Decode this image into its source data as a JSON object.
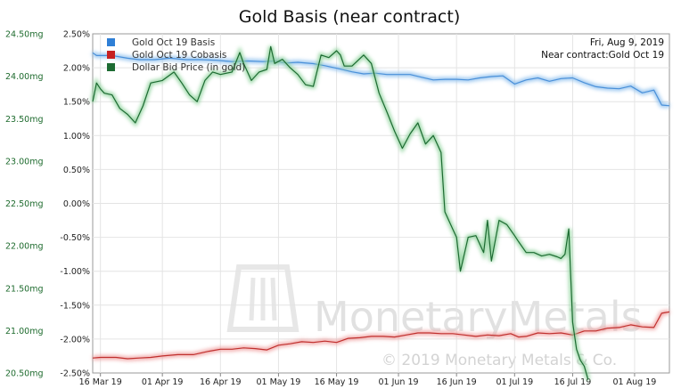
{
  "chart_data": {
    "type": "line",
    "title": "Gold Basis (near contract)",
    "info": {
      "date": "Fri, Aug 9, 2019",
      "contract": "Near contract:Gold Oct 19"
    },
    "watermark": {
      "brand": "MonetaryMetals",
      "copyright": "© 2019 Monetary Metals & Co."
    },
    "x_ticks": [
      "16 Mar 19",
      "01 Apr 19",
      "16 Apr 19",
      "01 May 19",
      "16 May 19",
      "01 Jun 19",
      "16 Jun 19",
      "01 Jul 19",
      "16 Jul 19",
      "01 Aug 19"
    ],
    "x_tick_days": [
      0,
      16,
      31,
      46,
      61,
      77,
      92,
      107,
      122,
      138
    ],
    "x_range": [
      -2,
      147
    ],
    "right_axis": {
      "ticks": [
        "2.50%",
        "2.00%",
        "1.50%",
        "1.00%",
        "0.50%",
        "0.00%",
        "-0.50%",
        "-1.00%",
        "-1.50%",
        "-2.00%",
        "-2.50%"
      ],
      "range": [
        -2.5,
        2.5
      ]
    },
    "left_axis": {
      "ticks": [
        "24.50mg",
        "24.00mg",
        "23.50mg",
        "23.00mg",
        "22.50mg",
        "22.00mg",
        "21.50mg",
        "21.00mg",
        "20.50mg"
      ],
      "range": [
        20.5,
        24.5
      ]
    },
    "legend_placement": "top-left",
    "series": [
      {
        "name": "Gold Oct 19 Basis",
        "color": "#4a90d9",
        "axis": "right",
        "points": [
          [
            -2,
            2.22
          ],
          [
            -1,
            2.18
          ],
          [
            3,
            2.18
          ],
          [
            7,
            2.14
          ],
          [
            10,
            2.12
          ],
          [
            14,
            2.12
          ],
          [
            18,
            2.14
          ],
          [
            22,
            2.12
          ],
          [
            26,
            2.12
          ],
          [
            30,
            2.11
          ],
          [
            34,
            2.09
          ],
          [
            38,
            2.1
          ],
          [
            42,
            2.09
          ],
          [
            45,
            2.1
          ],
          [
            48,
            2.07
          ],
          [
            51,
            2.08
          ],
          [
            55,
            2.06
          ],
          [
            58,
            2.03
          ],
          [
            62,
            1.98
          ],
          [
            65,
            1.94
          ],
          [
            68,
            1.91
          ],
          [
            71,
            1.92
          ],
          [
            74,
            1.9
          ],
          [
            77,
            1.9
          ],
          [
            80,
            1.9
          ],
          [
            83,
            1.86
          ],
          [
            86,
            1.82
          ],
          [
            89,
            1.83
          ],
          [
            92,
            1.83
          ],
          [
            95,
            1.82
          ],
          [
            98,
            1.85
          ],
          [
            101,
            1.87
          ],
          [
            104,
            1.88
          ],
          [
            107,
            1.76
          ],
          [
            110,
            1.82
          ],
          [
            113,
            1.85
          ],
          [
            116,
            1.8
          ],
          [
            119,
            1.84
          ],
          [
            122,
            1.85
          ],
          [
            125,
            1.78
          ],
          [
            128,
            1.72
          ],
          [
            131,
            1.7
          ],
          [
            134,
            1.69
          ],
          [
            137,
            1.73
          ],
          [
            140,
            1.63
          ],
          [
            143,
            1.67
          ],
          [
            145,
            1.45
          ],
          [
            147,
            1.44
          ]
        ]
      },
      {
        "name": "Gold Oct 19 Cobasis",
        "color": "#c0302e",
        "axis": "right",
        "points": [
          [
            -2,
            -2.28
          ],
          [
            0,
            -2.27
          ],
          [
            4,
            -2.27
          ],
          [
            7,
            -2.29
          ],
          [
            10,
            -2.28
          ],
          [
            13,
            -2.27
          ],
          [
            16,
            -2.25
          ],
          [
            20,
            -2.23
          ],
          [
            24,
            -2.23
          ],
          [
            28,
            -2.18
          ],
          [
            31,
            -2.15
          ],
          [
            34,
            -2.15
          ],
          [
            37,
            -2.13
          ],
          [
            40,
            -2.14
          ],
          [
            43,
            -2.16
          ],
          [
            46,
            -2.09
          ],
          [
            49,
            -2.07
          ],
          [
            52,
            -2.04
          ],
          [
            55,
            -2.05
          ],
          [
            58,
            -2.03
          ],
          [
            61,
            -2.05
          ],
          [
            64,
            -1.99
          ],
          [
            67,
            -1.98
          ],
          [
            70,
            -1.96
          ],
          [
            73,
            -1.96
          ],
          [
            76,
            -1.97
          ],
          [
            79,
            -1.94
          ],
          [
            82,
            -1.91
          ],
          [
            85,
            -1.91
          ],
          [
            88,
            -1.92
          ],
          [
            91,
            -1.92
          ],
          [
            94,
            -1.94
          ],
          [
            97,
            -1.96
          ],
          [
            100,
            -1.94
          ],
          [
            103,
            -1.95
          ],
          [
            106,
            -1.92
          ],
          [
            108,
            -1.97
          ],
          [
            110,
            -1.96
          ],
          [
            113,
            -1.91
          ],
          [
            116,
            -1.92
          ],
          [
            119,
            -1.91
          ],
          [
            122,
            -1.94
          ],
          [
            125,
            -1.88
          ],
          [
            128,
            -1.88
          ],
          [
            131,
            -1.84
          ],
          [
            134,
            -1.83
          ],
          [
            137,
            -1.79
          ],
          [
            140,
            -1.82
          ],
          [
            143,
            -1.83
          ],
          [
            145,
            -1.62
          ],
          [
            147,
            -1.6
          ]
        ]
      },
      {
        "name": "Dollar Bid Price (in gold)",
        "color": "#1d6b32",
        "axis": "left",
        "points": [
          [
            -2,
            23.7
          ],
          [
            -1,
            23.92
          ],
          [
            0,
            23.85
          ],
          [
            1,
            23.8
          ],
          [
            3,
            23.78
          ],
          [
            5,
            23.62
          ],
          [
            7,
            23.55
          ],
          [
            9,
            23.45
          ],
          [
            11,
            23.65
          ],
          [
            13,
            23.92
          ],
          [
            16,
            23.95
          ],
          [
            19,
            24.05
          ],
          [
            21,
            23.92
          ],
          [
            23,
            23.78
          ],
          [
            25,
            23.7
          ],
          [
            27,
            23.95
          ],
          [
            29,
            24.05
          ],
          [
            31,
            24.02
          ],
          [
            34,
            24.05
          ],
          [
            36,
            24.28
          ],
          [
            37,
            24.15
          ],
          [
            39,
            23.95
          ],
          [
            41,
            24.05
          ],
          [
            43,
            24.08
          ],
          [
            44,
            24.35
          ],
          [
            45,
            24.15
          ],
          [
            47,
            24.2
          ],
          [
            49,
            24.1
          ],
          [
            51,
            24.02
          ],
          [
            53,
            23.9
          ],
          [
            55,
            23.88
          ],
          [
            57,
            24.25
          ],
          [
            59,
            24.22
          ],
          [
            61,
            24.3
          ],
          [
            62,
            24.25
          ],
          [
            63,
            24.12
          ],
          [
            65,
            24.12
          ],
          [
            68,
            24.25
          ],
          [
            70,
            24.15
          ],
          [
            72,
            23.8
          ],
          [
            74,
            23.58
          ],
          [
            76,
            23.35
          ],
          [
            78,
            23.15
          ],
          [
            80,
            23.32
          ],
          [
            82,
            23.45
          ],
          [
            84,
            23.2
          ],
          [
            86,
            23.3
          ],
          [
            88,
            23.1
          ],
          [
            89,
            22.4
          ],
          [
            91,
            22.2
          ],
          [
            92,
            22.1
          ],
          [
            93,
            21.7
          ],
          [
            95,
            22.1
          ],
          [
            97,
            22.12
          ],
          [
            99,
            21.92
          ],
          [
            100,
            22.3
          ],
          [
            101,
            21.82
          ],
          [
            103,
            22.3
          ],
          [
            105,
            22.25
          ],
          [
            107,
            22.12
          ],
          [
            108,
            22.05
          ],
          [
            110,
            21.92
          ],
          [
            112,
            21.92
          ],
          [
            114,
            21.88
          ],
          [
            116,
            21.9
          ],
          [
            118,
            21.87
          ],
          [
            119,
            21.85
          ],
          [
            120,
            21.9
          ],
          [
            121,
            22.2
          ],
          [
            122,
            21.1
          ],
          [
            123,
            20.78
          ],
          [
            124,
            20.65
          ],
          [
            125,
            20.58
          ],
          [
            126,
            20.42
          ]
        ]
      }
    ]
  }
}
